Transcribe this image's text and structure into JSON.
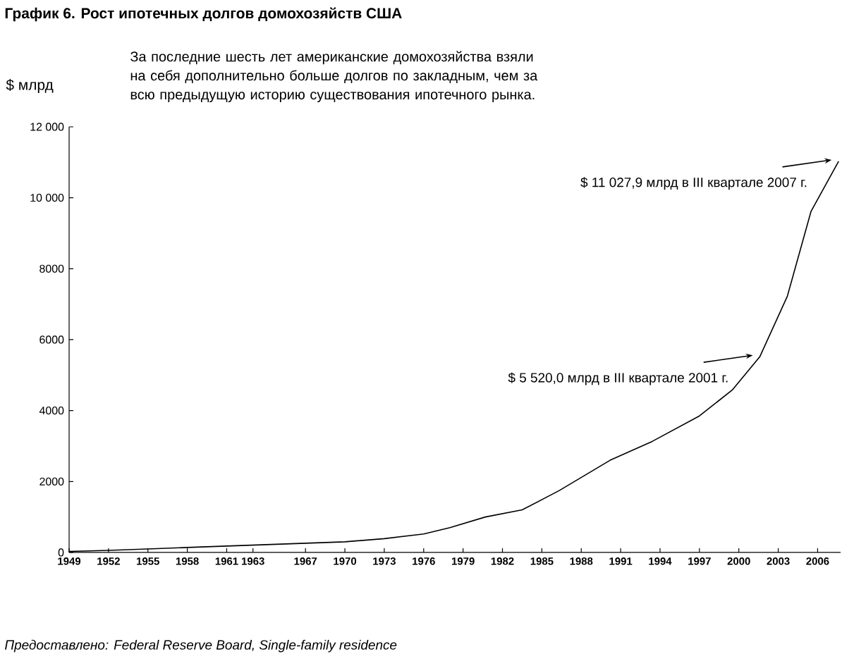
{
  "chart_data": {
    "type": "line",
    "title": "График 6. Рост ипотечных долгов домохозяйств США",
    "ylabel": "$ млрд",
    "x": [
      1949,
      1952,
      1955,
      1958,
      1961,
      1964,
      1967,
      1970,
      1973,
      1976,
      1978,
      1980.7,
      1983.5,
      1986.3,
      1990.2,
      1993.4,
      1997,
      1999.5,
      2001.6,
      2003.7,
      2005.5,
      2007.6
    ],
    "series": [
      {
        "color": "#000000",
        "values": [
          30,
          60,
          100,
          140,
          180,
          220,
          260,
          300,
          390,
          520,
          700,
          1000,
          1200,
          1740,
          2600,
          3130,
          3850,
          4580,
          5520,
          7230,
          9620,
          11027.9
        ]
      }
    ],
    "xlim": [
      1949,
      2007.75
    ],
    "xticks": [
      1949,
      1952,
      1955,
      1958,
      1961,
      1963,
      1967,
      1970,
      1973,
      1976,
      1979,
      1982,
      1985,
      1988,
      1991,
      1994,
      1997,
      2000,
      2003,
      2006
    ],
    "ylim": [
      0,
      12000
    ],
    "yticks": [
      0,
      2000,
      4000,
      6000,
      8000,
      {
        "value": 10000,
        "label": "10 000"
      },
      {
        "value": 12000,
        "label": "12 000"
      }
    ],
    "grid": false,
    "marker": "none",
    "line_style": "solid",
    "annotations": [
      "За последние шесть лет американские домохозяйства взяли на себя дополнительно больше долгов по закладным, чем за всю предыдущую историю существования ипотечного рынка.",
      {
        "text": "$ 11 027,9 млрд в III квартале 2007 г.",
        "x": 2007.6,
        "y": 11027.9
      },
      {
        "text": "$ 5 520,0 млрд в III квартале 2001 г.",
        "x": 2001.6,
        "y": 5520
      },
      "*Предоставлено: Federal Reserve Board, Single-family residence*"
    ]
  }
}
